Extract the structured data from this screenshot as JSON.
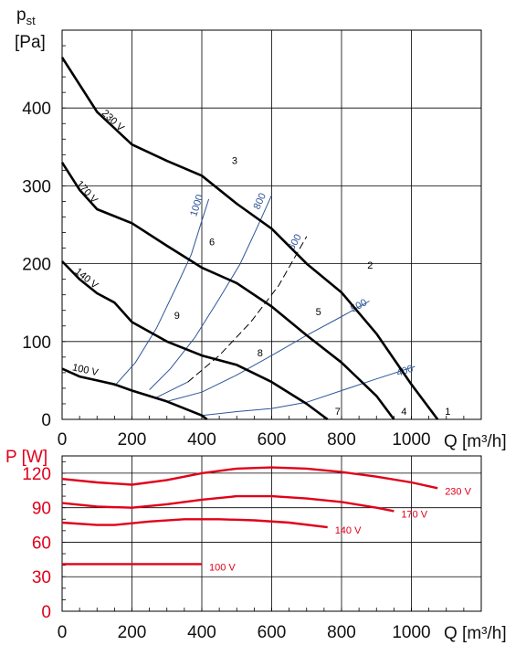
{
  "chart_data": [
    {
      "type": "line",
      "xlabel": "Q [m³/h]",
      "ylabel": "pst",
      "ylabel_unit": "[Pa]",
      "xlim": [
        0,
        1200
      ],
      "ylim": [
        0,
        500
      ],
      "grid": true,
      "x_ticks": [
        0,
        200,
        400,
        600,
        800,
        1000
      ],
      "y_ticks": [
        0,
        100,
        200,
        300,
        400
      ],
      "colors": {
        "fan": "#000000",
        "system": "#2f5597"
      },
      "fan_curves": [
        {
          "name": "230 V",
          "points": [
            [
              0,
              465
            ],
            [
              100,
              395
            ],
            [
              200,
              353
            ],
            [
              300,
              332
            ],
            [
              400,
              313
            ],
            [
              500,
              277
            ],
            [
              600,
              245
            ],
            [
              700,
              200
            ],
            [
              800,
              163
            ],
            [
              900,
              110
            ],
            [
              1000,
              45
            ],
            [
              1075,
              0
            ]
          ]
        },
        {
          "name": "170 V",
          "points": [
            [
              0,
              330
            ],
            [
              50,
              295
            ],
            [
              100,
              270
            ],
            [
              200,
              252
            ],
            [
              300,
              223
            ],
            [
              400,
              195
            ],
            [
              500,
              175
            ],
            [
              600,
              145
            ],
            [
              700,
              108
            ],
            [
              800,
              73
            ],
            [
              900,
              30
            ],
            [
              950,
              0
            ]
          ]
        },
        {
          "name": "140 V",
          "points": [
            [
              0,
              203
            ],
            [
              50,
              180
            ],
            [
              100,
              162
            ],
            [
              150,
              150
            ],
            [
              200,
              125
            ],
            [
              300,
              100
            ],
            [
              400,
              82
            ],
            [
              500,
              70
            ],
            [
              600,
              48
            ],
            [
              700,
              20
            ],
            [
              760,
              0
            ]
          ]
        },
        {
          "name": "100 V",
          "points": [
            [
              0,
              65
            ],
            [
              50,
              55
            ],
            [
              100,
              50
            ],
            [
              150,
              45
            ],
            [
              200,
              37
            ],
            [
              300,
              23
            ],
            [
              400,
              5
            ],
            [
              415,
              0
            ]
          ]
        }
      ],
      "system_curves": [
        {
          "name": "1000",
          "points": [
            [
              150,
              43
            ],
            [
              210,
              73
            ],
            [
              270,
              117
            ],
            [
              330,
              173
            ],
            [
              370,
              212
            ],
            [
              400,
              255
            ],
            [
              420,
              283
            ]
          ]
        },
        {
          "name": "800",
          "points": [
            [
              250,
              38
            ],
            [
              310,
              65
            ],
            [
              380,
              105
            ],
            [
              450,
              155
            ],
            [
              510,
              200
            ],
            [
              560,
              248
            ],
            [
              600,
              288
            ]
          ]
        },
        {
          "name": "600",
          "points": [
            [
              270,
              28
            ],
            [
              360,
              48
            ],
            [
              450,
              82
            ],
            [
              540,
              125
            ],
            [
              620,
              172
            ],
            [
              700,
              235
            ]
          ],
          "dashed_points": [
            [
              360,
              48
            ],
            [
              450,
              82
            ],
            [
              540,
              125
            ],
            [
              620,
              172
            ],
            [
              700,
              235
            ]
          ]
        },
        {
          "name": "500",
          "points": [
            [
              300,
              23
            ],
            [
              400,
              35
            ],
            [
              500,
              57
            ],
            [
              600,
              82
            ],
            [
              700,
              108
            ],
            [
              800,
              132
            ],
            [
              880,
              152
            ]
          ]
        },
        {
          "name": "400",
          "points": [
            [
              400,
              5
            ],
            [
              500,
              10
            ],
            [
              600,
              14
            ],
            [
              700,
              22
            ],
            [
              800,
              37
            ],
            [
              900,
              52
            ],
            [
              1010,
              68
            ]
          ]
        }
      ],
      "point_labels": [
        {
          "label": "1",
          "x": 1075,
          "y": 0
        },
        {
          "label": "2",
          "x": 853,
          "y": 188
        },
        {
          "label": "3",
          "x": 465,
          "y": 322
        },
        {
          "label": "4",
          "x": 950,
          "y": 0
        },
        {
          "label": "5",
          "x": 705,
          "y": 128
        },
        {
          "label": "6",
          "x": 400,
          "y": 218
        },
        {
          "label": "7",
          "x": 760,
          "y": 0
        },
        {
          "label": "8",
          "x": 538,
          "y": 75
        },
        {
          "label": "9",
          "x": 300,
          "y": 123
        }
      ]
    },
    {
      "type": "line",
      "ylabel": "P [W]",
      "xlabel": "Q [m³/h]",
      "xlim": [
        0,
        1200
      ],
      "ylim": [
        0,
        135
      ],
      "grid": true,
      "x_ticks": [
        0,
        200,
        400,
        600,
        800,
        1000
      ],
      "y_ticks": [
        0,
        30,
        60,
        90,
        120
      ],
      "colors": {
        "power": "#e0001a"
      },
      "series": [
        {
          "name": "230 V",
          "points": [
            [
              0,
              115
            ],
            [
              100,
              112
            ],
            [
              200,
              110
            ],
            [
              300,
              114
            ],
            [
              400,
              120
            ],
            [
              500,
              124
            ],
            [
              600,
              125
            ],
            [
              700,
              124
            ],
            [
              800,
              121
            ],
            [
              900,
              117
            ],
            [
              1000,
              112
            ],
            [
              1075,
              107
            ]
          ]
        },
        {
          "name": "170 V",
          "points": [
            [
              0,
              94
            ],
            [
              100,
              91
            ],
            [
              200,
              90
            ],
            [
              300,
              93
            ],
            [
              400,
              97
            ],
            [
              500,
              100
            ],
            [
              600,
              100
            ],
            [
              700,
              98
            ],
            [
              800,
              95
            ],
            [
              900,
              90
            ],
            [
              950,
              87
            ]
          ]
        },
        {
          "name": "140 V",
          "points": [
            [
              0,
              77
            ],
            [
              100,
              75
            ],
            [
              150,
              75
            ],
            [
              250,
              78
            ],
            [
              350,
              80
            ],
            [
              450,
              80
            ],
            [
              550,
              79
            ],
            [
              650,
              77
            ],
            [
              760,
              73
            ]
          ]
        },
        {
          "name": "100 V",
          "points": [
            [
              0,
              41
            ],
            [
              100,
              41
            ],
            [
              200,
              41
            ],
            [
              300,
              41
            ],
            [
              400,
              41
            ]
          ]
        }
      ]
    }
  ]
}
